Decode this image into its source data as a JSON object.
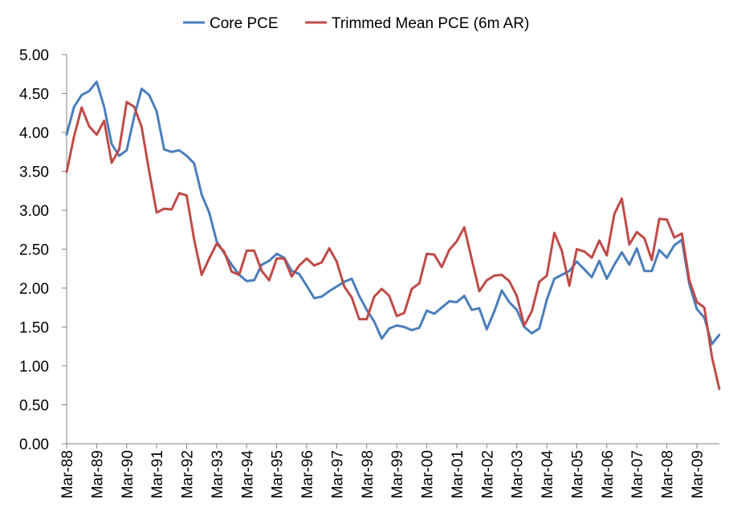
{
  "chart_data": {
    "type": "line",
    "title": "",
    "xlabel": "",
    "ylabel": "",
    "ylim": [
      0,
      5
    ],
    "yticks": [
      "0.00",
      "0.50",
      "1.00",
      "1.50",
      "2.00",
      "2.50",
      "3.00",
      "3.50",
      "4.00",
      "4.50",
      "5.00"
    ],
    "x_tick_labels": [
      "Mar-88",
      "Mar-89",
      "Mar-90",
      "Mar-91",
      "Mar-92",
      "Mar-93",
      "Mar-94",
      "Mar-95",
      "Mar-96",
      "Mar-97",
      "Mar-98",
      "Mar-99",
      "Mar-00",
      "Mar-01",
      "Mar-02",
      "Mar-03",
      "Mar-04",
      "Mar-05",
      "Mar-06",
      "Mar-07",
      "Mar-08",
      "Mar-09"
    ],
    "frequency": "quarterly",
    "grid": false,
    "legend_position": "top",
    "series": [
      {
        "name": "Core PCE",
        "color": "#4a7ebb",
        "values": [
          3.97,
          4.33,
          4.48,
          4.53,
          4.65,
          4.33,
          3.85,
          3.7,
          3.77,
          4.2,
          4.56,
          4.48,
          4.27,
          3.78,
          3.75,
          3.77,
          3.7,
          3.6,
          3.2,
          2.97,
          2.6,
          2.45,
          2.3,
          2.17,
          2.09,
          2.1,
          2.3,
          2.35,
          2.44,
          2.39,
          2.22,
          2.18,
          2.03,
          1.87,
          1.89,
          1.96,
          2.02,
          2.08,
          2.12,
          1.9,
          1.72,
          1.57,
          1.35,
          1.48,
          1.52,
          1.5,
          1.46,
          1.49,
          1.71,
          1.67,
          1.75,
          1.83,
          1.82,
          1.9,
          1.72,
          1.74,
          1.47,
          1.7,
          1.97,
          1.82,
          1.72,
          1.5,
          1.42,
          1.48,
          1.85,
          2.12,
          2.17,
          2.22,
          2.34,
          2.24,
          2.14,
          2.35,
          2.12,
          2.3,
          2.46,
          2.3,
          2.51,
          2.22,
          2.22,
          2.49,
          2.39,
          2.55,
          2.62,
          2.05,
          1.73,
          1.62,
          1.28,
          1.4
        ]
      },
      {
        "name": "Trimmed Mean PCE (6m AR)",
        "color": "#be4b48",
        "values": [
          3.49,
          3.95,
          4.32,
          4.08,
          3.97,
          4.15,
          3.61,
          3.78,
          4.39,
          4.33,
          4.07,
          3.5,
          2.97,
          3.02,
          3.01,
          3.22,
          3.19,
          2.62,
          2.17,
          2.38,
          2.57,
          2.47,
          2.21,
          2.17,
          2.48,
          2.48,
          2.22,
          2.1,
          2.38,
          2.38,
          2.15,
          2.29,
          2.38,
          2.29,
          2.33,
          2.51,
          2.34,
          2.02,
          1.88,
          1.6,
          1.6,
          1.89,
          1.99,
          1.9,
          1.64,
          1.68,
          1.99,
          2.06,
          2.44,
          2.43,
          2.27,
          2.49,
          2.6,
          2.78,
          2.37,
          1.96,
          2.1,
          2.16,
          2.17,
          2.09,
          1.9,
          1.52,
          1.7,
          2.08,
          2.16,
          2.71,
          2.48,
          2.03,
          2.5,
          2.47,
          2.39,
          2.61,
          2.42,
          2.95,
          3.15,
          2.56,
          2.72,
          2.64,
          2.36,
          2.89,
          2.88,
          2.65,
          2.7,
          2.1,
          1.82,
          1.75,
          1.12,
          0.7
        ]
      }
    ]
  }
}
